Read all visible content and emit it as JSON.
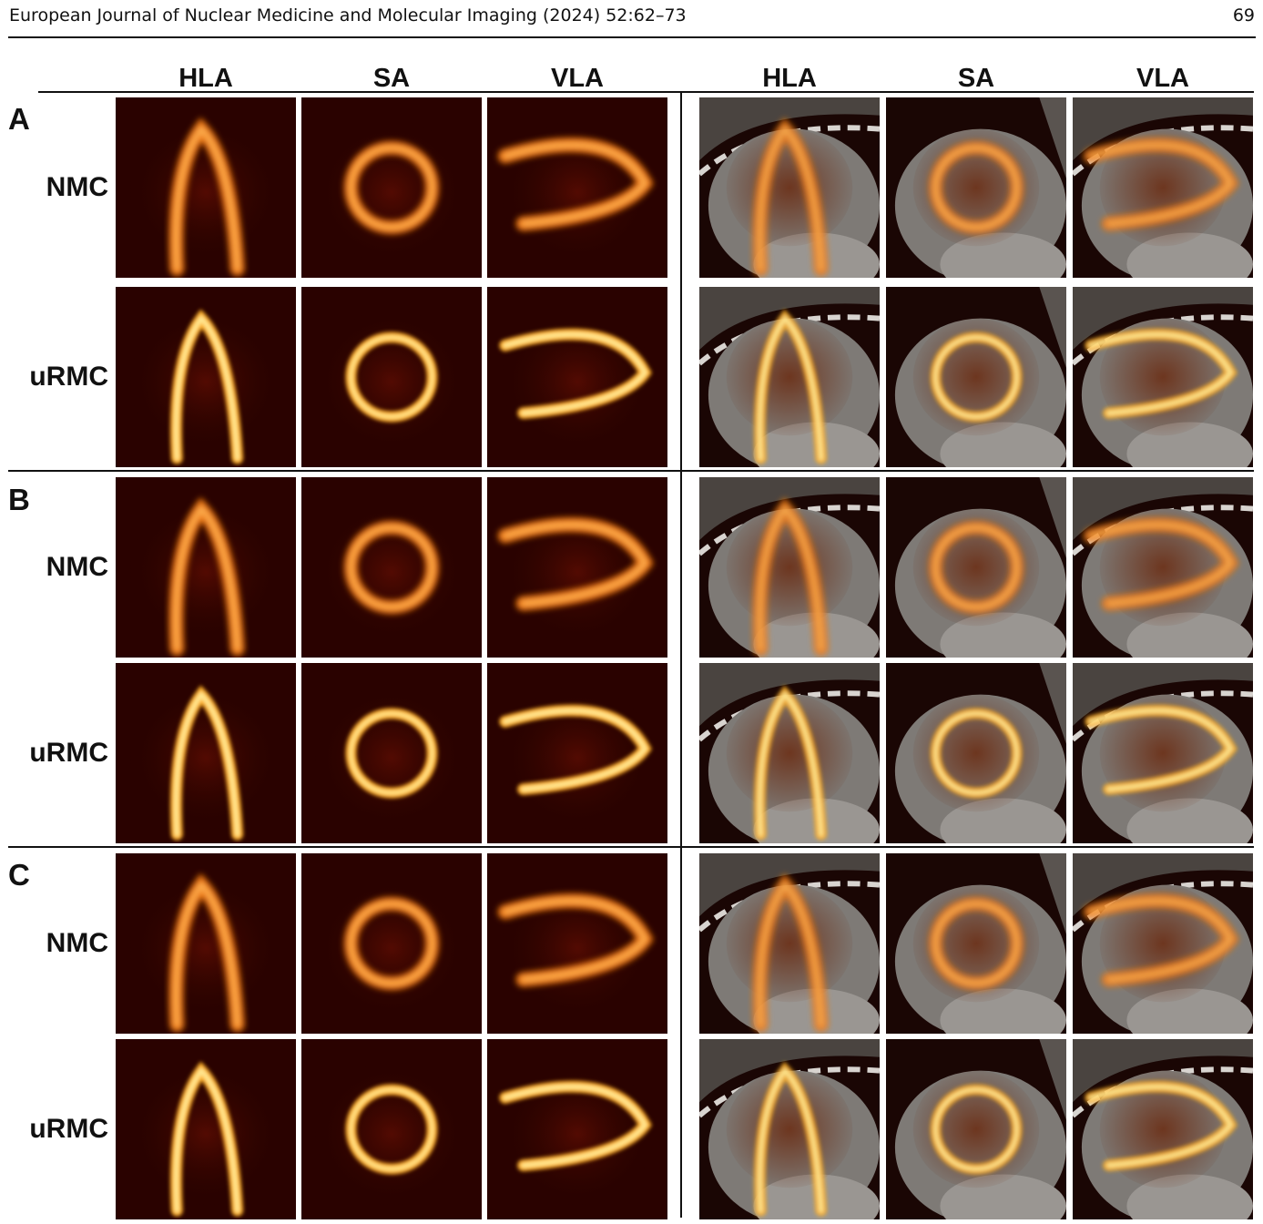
{
  "header": {
    "running_title": "European Journal of Nuclear Medicine and Molecular Imaging (2024) 52:62–73",
    "page_number": "69"
  },
  "columns": [
    "HLA",
    "SA",
    "VLA",
    "HLA",
    "SA",
    "VLA"
  ],
  "groups": [
    {
      "label": "A",
      "rows": [
        "NMC",
        "uRMC"
      ]
    },
    {
      "label": "B",
      "rows": [
        "NMC",
        "uRMC"
      ]
    },
    {
      "label": "C",
      "rows": [
        "NMC",
        "uRMC"
      ]
    }
  ],
  "colors": {
    "text": "#111111",
    "pet_dark": "#2a0200",
    "pet_hot": "#ffb020",
    "ct_gray": "#8a8580"
  }
}
